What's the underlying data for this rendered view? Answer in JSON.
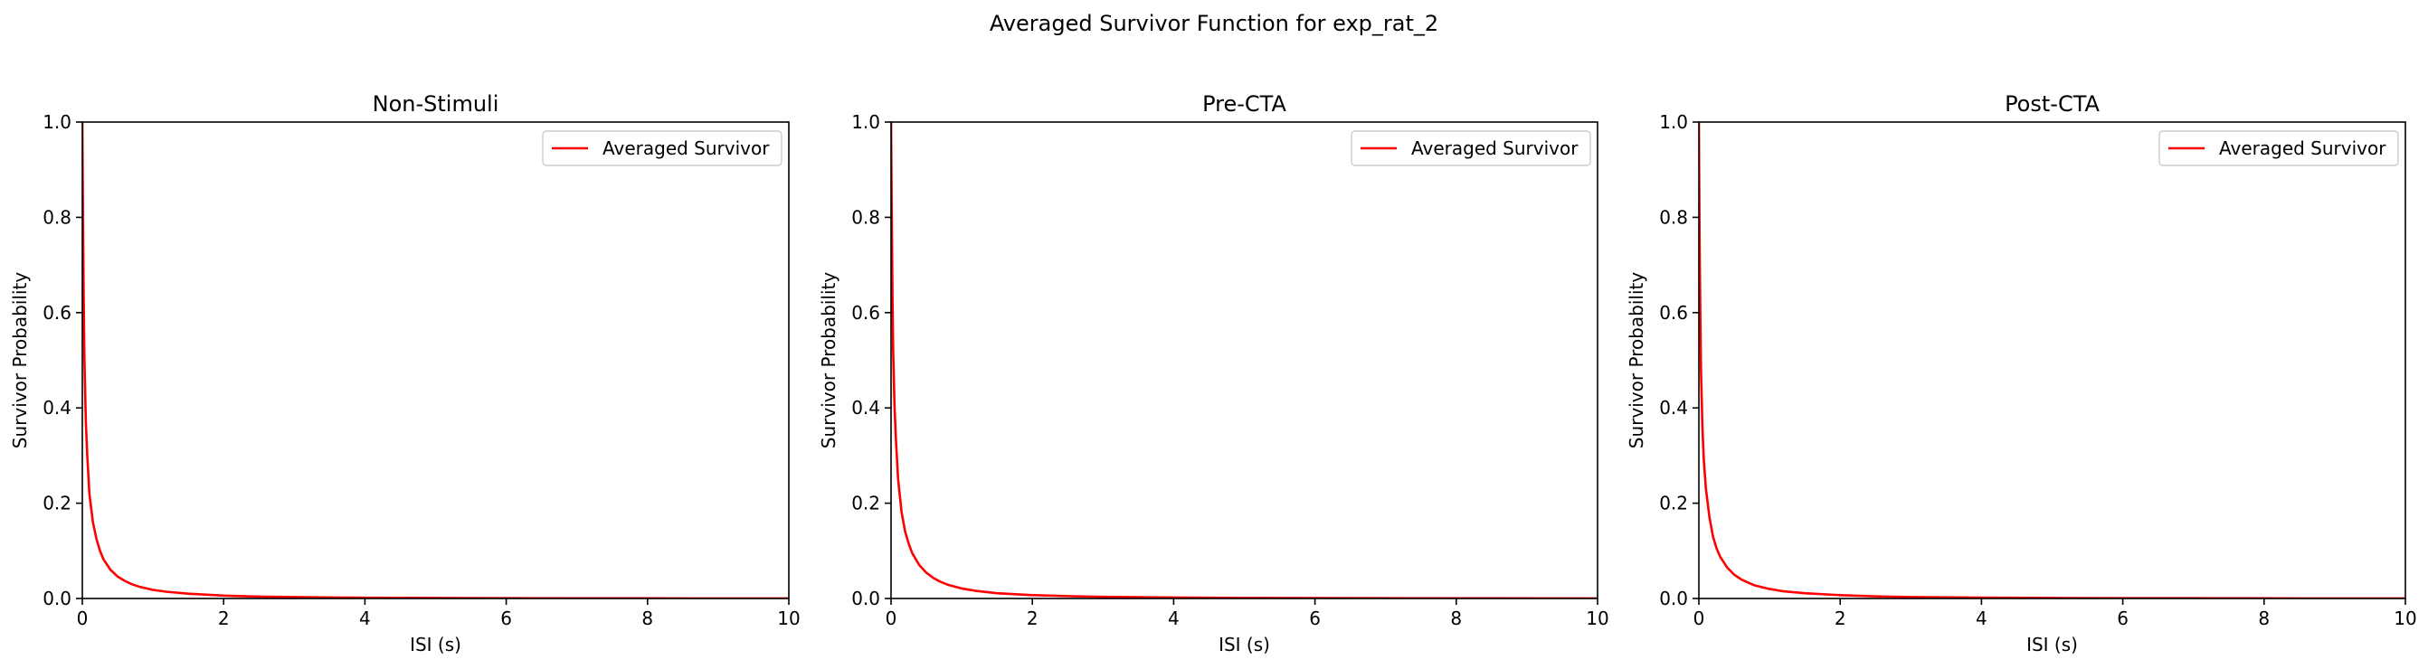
{
  "figure": {
    "suptitle": "Averaged Survivor Function for exp_rat_2"
  },
  "colors": {
    "line": "#ff0000",
    "axes": "#000000",
    "legend_border": "#cccccc",
    "background": "#ffffff"
  },
  "chart_data": [
    {
      "type": "line",
      "title": "Non-Stimuli",
      "xlabel": "ISI (s)",
      "ylabel": "Survivor Probability",
      "xlim": [
        0,
        10
      ],
      "ylim": [
        0,
        1.0
      ],
      "xticks": [
        "0",
        "2",
        "4",
        "6",
        "8",
        "10"
      ],
      "yticks": [
        "0.0",
        "0.2",
        "0.4",
        "0.6",
        "0.8",
        "1.0"
      ],
      "grid": false,
      "legend_position": "upper right",
      "series": [
        {
          "name": "Averaged Survivor",
          "color": "#ff0000",
          "x": [
            0,
            0.01,
            0.02,
            0.03,
            0.05,
            0.07,
            0.1,
            0.15,
            0.2,
            0.25,
            0.3,
            0.4,
            0.5,
            0.6,
            0.7,
            0.8,
            1.0,
            1.2,
            1.5,
            2.0,
            2.5,
            3.0,
            4.0,
            5.0,
            6.0,
            8.0,
            10.0
          ],
          "y": [
            1.0,
            0.78,
            0.62,
            0.5,
            0.37,
            0.3,
            0.22,
            0.16,
            0.125,
            0.1,
            0.082,
            0.06,
            0.046,
            0.037,
            0.03,
            0.025,
            0.018,
            0.014,
            0.01,
            0.006,
            0.004,
            0.003,
            0.0015,
            0.001,
            0.0006,
            0.0003,
            0.0001
          ]
        }
      ]
    },
    {
      "type": "line",
      "title": "Pre-CTA",
      "xlabel": "ISI (s)",
      "ylabel": "Survivor Probability",
      "xlim": [
        0,
        10
      ],
      "ylim": [
        0,
        1.0
      ],
      "xticks": [
        "0",
        "2",
        "4",
        "6",
        "8",
        "10"
      ],
      "yticks": [
        "0.0",
        "0.2",
        "0.4",
        "0.6",
        "0.8",
        "1.0"
      ],
      "grid": false,
      "legend_position": "upper right",
      "series": [
        {
          "name": "Averaged Survivor",
          "color": "#ff0000",
          "x": [
            0,
            0.01,
            0.02,
            0.03,
            0.05,
            0.07,
            0.1,
            0.15,
            0.2,
            0.25,
            0.3,
            0.4,
            0.5,
            0.6,
            0.7,
            0.8,
            1.0,
            1.2,
            1.5,
            2.0,
            2.5,
            3.0,
            4.0,
            5.0,
            6.0,
            8.0,
            10.0
          ],
          "y": [
            1.0,
            0.8,
            0.64,
            0.52,
            0.4,
            0.33,
            0.25,
            0.18,
            0.14,
            0.115,
            0.095,
            0.07,
            0.054,
            0.043,
            0.035,
            0.029,
            0.021,
            0.016,
            0.011,
            0.007,
            0.005,
            0.0035,
            0.002,
            0.0012,
            0.0008,
            0.0004,
            0.0002
          ]
        }
      ]
    },
    {
      "type": "line",
      "title": "Post-CTA",
      "xlabel": "ISI (s)",
      "ylabel": "Survivor Probability",
      "xlim": [
        0,
        10
      ],
      "ylim": [
        0,
        1.0
      ],
      "xticks": [
        "0",
        "2",
        "4",
        "6",
        "8",
        "10"
      ],
      "yticks": [
        "0.0",
        "0.2",
        "0.4",
        "0.6",
        "0.8",
        "1.0"
      ],
      "grid": false,
      "legend_position": "upper right",
      "series": [
        {
          "name": "Averaged Survivor",
          "color": "#ff0000",
          "x": [
            0,
            0.01,
            0.02,
            0.03,
            0.05,
            0.07,
            0.1,
            0.15,
            0.2,
            0.25,
            0.3,
            0.4,
            0.5,
            0.6,
            0.7,
            0.8,
            1.0,
            1.2,
            1.5,
            2.0,
            2.5,
            3.0,
            4.0,
            5.0,
            6.0,
            8.0,
            10.0
          ],
          "y": [
            1.0,
            0.76,
            0.6,
            0.48,
            0.36,
            0.29,
            0.23,
            0.17,
            0.13,
            0.105,
            0.088,
            0.065,
            0.05,
            0.04,
            0.033,
            0.027,
            0.02,
            0.015,
            0.011,
            0.007,
            0.0045,
            0.003,
            0.0018,
            0.001,
            0.0007,
            0.0003,
            0.0001
          ]
        }
      ]
    }
  ]
}
